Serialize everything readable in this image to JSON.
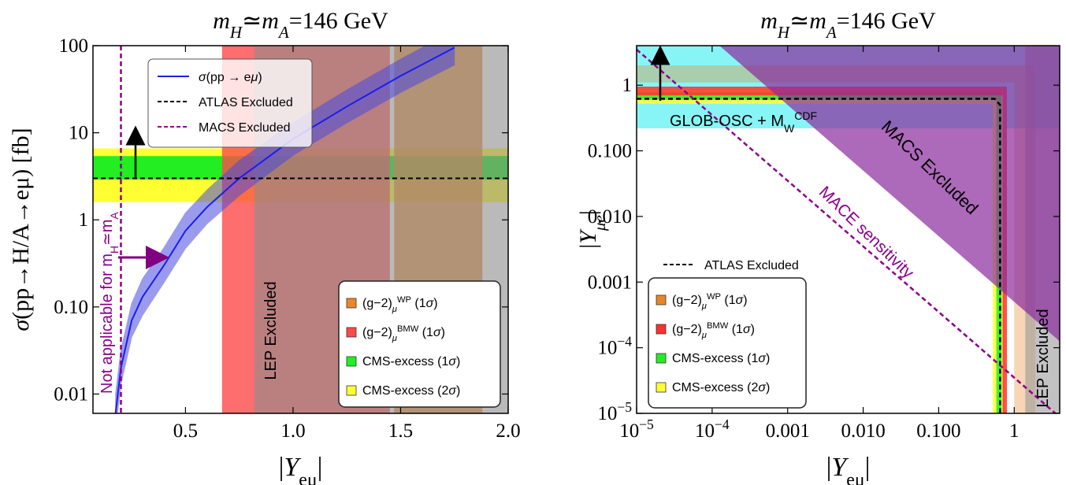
{
  "chart_data": [
    {
      "type": "line",
      "title": [
        {
          "text": "m",
          "style": "italic"
        },
        {
          "text": "H",
          "style": "italic sub"
        },
        {
          "text": "≃"
        },
        {
          "text": "m",
          "style": "italic"
        },
        {
          "text": "A",
          "style": "italic sub"
        },
        {
          "text": "=146 GeV"
        }
      ],
      "xlabel": [
        {
          "text": "|"
        },
        {
          "text": "Y",
          "style": "italic"
        },
        {
          "text": "eμ",
          "style": "sub"
        },
        {
          "text": "|"
        }
      ],
      "ylabel": [
        {
          "text": "σ",
          "style": "italic"
        },
        {
          "text": "(pp→H/A→eμ) [fb]"
        }
      ],
      "xlim": [
        0.07,
        2
      ],
      "ylim": [
        0.006,
        100
      ],
      "ylog": true,
      "xticks": [
        0.5,
        {
          "value": 1,
          "label": "1.0"
        },
        1.5,
        {
          "value": 2,
          "label": "2.0"
        }
      ],
      "yticks": [
        0.01,
        {
          "value": 0.1,
          "label": "0.10"
        },
        1,
        10,
        100
      ],
      "x": [
        0.175,
        0.2,
        0.25,
        0.3,
        0.4,
        0.5,
        0.6,
        0.75,
        1.0,
        1.25,
        1.5,
        1.75
      ],
      "series": [
        {
          "name": [
            {
              "text": "σ",
              "style": "italic"
            },
            {
              "text": "(pp → e"
            },
            {
              "text": "μ",
              "style": "italic"
            },
            {
              "text": ")"
            }
          ],
          "color": "#1c1cf0",
          "band_color": "#4a4ae0",
          "values": [
            0.006,
            0.02,
            0.07,
            0.13,
            0.3,
            0.75,
            1.4,
            3,
            8.5,
            20,
            45,
            95
          ],
          "lower": [
            0.0038,
            0.013,
            0.045,
            0.08,
            0.19,
            0.47,
            0.9,
            1.9,
            5.5,
            13,
            29,
            60
          ],
          "upper": [
            0.01,
            0.032,
            0.11,
            0.21,
            0.48,
            1.2,
            2.2,
            4.8,
            13,
            31,
            70,
            150
          ]
        }
      ],
      "hlines": [
        {
          "name": "ATLAS Excluded",
          "value": 3,
          "color": "#000000",
          "dash": true
        }
      ],
      "vlines": [
        {
          "name": "MACS Excluded",
          "value": 0.2,
          "color": "#8b008b",
          "dash": true
        }
      ],
      "vbands": [
        {
          "name": [
            {
              "text": "(g−2)"
            },
            {
              "text": "μ",
              "style": "italic sub"
            },
            {
              "text": "WP",
              "style": "sup"
            },
            {
              "text": " (1"
            },
            {
              "text": "σ",
              "style": "italic"
            },
            {
              "text": ")"
            }
          ],
          "color": "#e8872a",
          "range": [
            1.47,
            1.88
          ]
        },
        {
          "name": [
            {
              "text": "(g−2)"
            },
            {
              "text": "μ",
              "style": "italic sub"
            },
            {
              "text": "BMW",
              "style": "sup"
            },
            {
              "text": " (1"
            },
            {
              "text": "σ",
              "style": "italic"
            },
            {
              "text": ")"
            }
          ],
          "color": "#ff4a4a",
          "range": [
            0.67,
            1.45
          ]
        },
        {
          "label": "LEP Excluded",
          "color": "#8c8c8c",
          "range": [
            0.82,
            2
          ]
        }
      ],
      "hbands": [
        {
          "name": [
            {
              "text": "CMS-excess (1"
            },
            {
              "text": "σ",
              "style": "italic"
            },
            {
              "text": ")"
            }
          ],
          "color": "#22ee22",
          "range": [
            2.9,
            5.4
          ]
        },
        {
          "name": [
            {
              "text": "CMS-excess (2"
            },
            {
              "text": "σ",
              "style": "italic"
            },
            {
              "text": ")"
            }
          ],
          "color": "#ffff33",
          "range": [
            1.6,
            6.6
          ]
        }
      ],
      "annotations": [
        {
          "text": [
            {
              "text": "Not applicable for m"
            },
            {
              "text": "H",
              "style": "sub"
            },
            {
              "text": "≃m"
            },
            {
              "text": "A",
              "style": "sub"
            }
          ],
          "color": "#8b008b"
        }
      ]
    },
    {
      "type": "region",
      "title": [
        {
          "text": "m",
          "style": "italic"
        },
        {
          "text": "H",
          "style": "italic sub"
        },
        {
          "text": "≃"
        },
        {
          "text": "m",
          "style": "italic"
        },
        {
          "text": "A",
          "style": "italic sub"
        },
        {
          "text": "=146 GeV"
        }
      ],
      "xlabel": [
        {
          "text": "|"
        },
        {
          "text": "Y",
          "style": "italic"
        },
        {
          "text": "eμ",
          "style": "sub"
        },
        {
          "text": "|"
        }
      ],
      "ylabel": [
        {
          "text": "|"
        },
        {
          "text": "Y",
          "style": "italic"
        },
        {
          "text": "μe",
          "style": "italic sub"
        },
        {
          "text": "|"
        }
      ],
      "xlim": [
        1e-05,
        4
      ],
      "ylim": [
        1e-05,
        4
      ],
      "xlog": true,
      "ylog": true,
      "xticks": [
        {
          "value": 1e-05,
          "label": "10",
          "exponent": "−5"
        },
        {
          "value": 0.0001,
          "label": "10",
          "exponent": "−4"
        },
        0.001,
        {
          "value": 0.01,
          "label": "0.010"
        },
        {
          "value": 0.1,
          "label": "0.100"
        },
        1
      ],
      "yticks": [
        {
          "value": 1e-05,
          "label": "10",
          "exponent": "−5"
        },
        {
          "value": 0.0001,
          "label": "10",
          "exponent": "−4"
        },
        0.001,
        {
          "value": 0.01,
          "label": "0.010"
        },
        {
          "value": 0.1,
          "label": "0.100"
        },
        1
      ],
      "hbands": [
        {
          "color": "#5ff2f2",
          "range": [
            0.22,
            4
          ]
        }
      ],
      "vbands": [
        {
          "label": "LEP Excluded",
          "color": "#9a9a9a",
          "range": [
            1.4,
            4
          ]
        }
      ],
      "regions": [
        {
          "name": "MACS Excluded",
          "color": "#8a2a9c",
          "product": 0.0005
        }
      ],
      "lbands": [
        {
          "name": [
            {
              "text": "(g−2)"
            },
            {
              "text": "μ",
              "style": "italic sub"
            },
            {
              "text": "WP",
              "style": "sup"
            },
            {
              "text": " (1"
            },
            {
              "text": "σ",
              "style": "italic"
            },
            {
              "text": ")"
            }
          ],
          "color": "#e8872a",
          "xrange": [
            1,
            1.9
          ],
          "yrange": [
            1.1,
            2
          ]
        },
        {
          "name": [
            {
              "text": "(g−2)"
            },
            {
              "text": "μ",
              "style": "italic sub"
            },
            {
              "text": "BMW",
              "style": "sup"
            },
            {
              "text": " (1"
            },
            {
              "text": "σ",
              "style": "italic"
            },
            {
              "text": ")"
            }
          ],
          "color": "#ff3030",
          "xrange": [
            0.7,
            0.8
          ],
          "yrange": [
            0.7,
            0.95
          ]
        },
        {
          "name": [
            {
              "text": "CMS-excess (1"
            },
            {
              "text": "σ",
              "style": "italic"
            },
            {
              "text": ")"
            }
          ],
          "color": "#22ee22",
          "xrange": [
            0.58,
            0.68
          ],
          "yrange": [
            0.6,
            0.78
          ]
        },
        {
          "name": [
            {
              "text": "CMS-excess (2"
            },
            {
              "text": "σ",
              "style": "italic"
            },
            {
              "text": ")"
            }
          ],
          "color": "#ffff33",
          "xrange": [
            0.52,
            0.75
          ],
          "yrange": [
            0.52,
            0.85
          ]
        }
      ],
      "series": [
        {
          "name": "ATLAS Excluded",
          "color": "#000000",
          "dash": true,
          "x": [
            1e-05,
            0.55,
            0.65,
            0.65
          ],
          "values": [
            0.62,
            0.62,
            0.5,
            1e-05
          ]
        },
        {
          "name": "MACE sensitivity",
          "color": "#8b008b",
          "dash": true,
          "inline": true,
          "x": [
            1e-05,
            3.5
          ],
          "values": [
            3.5,
            1e-05
          ]
        }
      ],
      "annotations": [
        {
          "text": [
            {
              "text": "GLOB-OSC + M"
            },
            {
              "text": "W",
              "style": "sub"
            },
            {
              "text": "CDF",
              "style": "sup"
            }
          ],
          "color": "#000000"
        }
      ]
    }
  ]
}
